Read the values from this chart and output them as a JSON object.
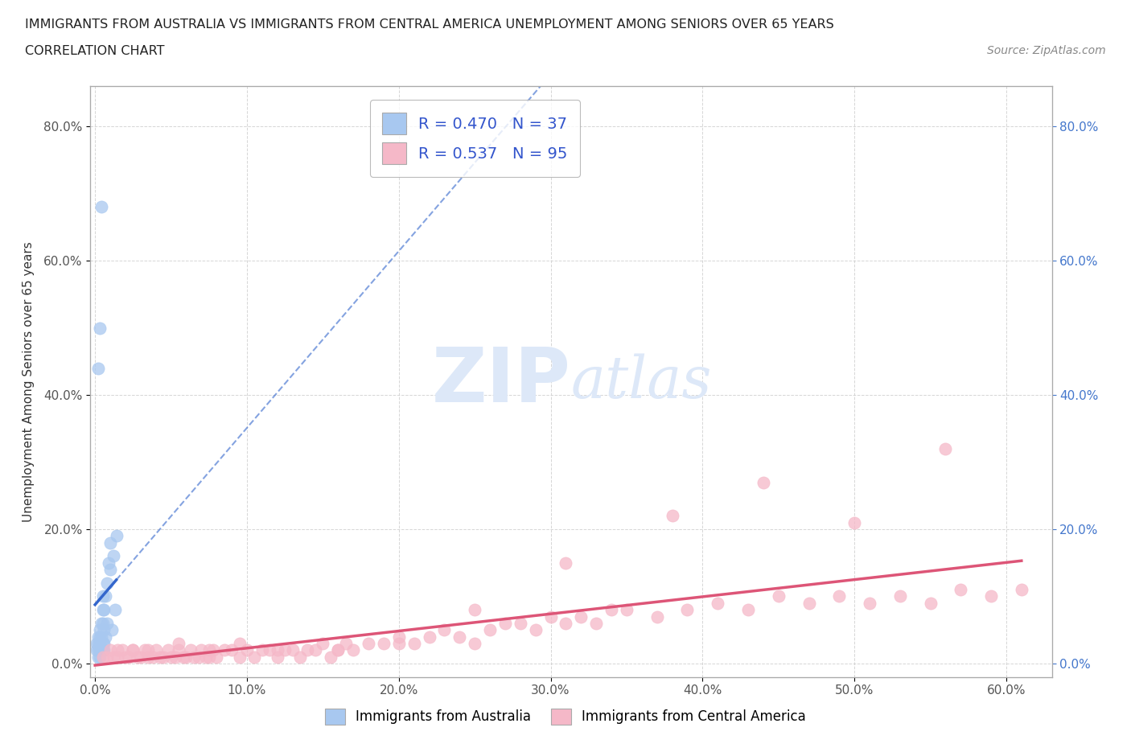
{
  "title_line1": "IMMIGRANTS FROM AUSTRALIA VS IMMIGRANTS FROM CENTRAL AMERICA UNEMPLOYMENT AMONG SENIORS OVER 65 YEARS",
  "title_line2": "CORRELATION CHART",
  "source_text": "Source: ZipAtlas.com",
  "xlabel_ticks": [
    "0.0%",
    "10.0%",
    "20.0%",
    "30.0%",
    "40.0%",
    "50.0%",
    "60.0%"
  ],
  "ylabel_ticks_left": [
    "0.0%",
    "20.0%",
    "40.0%",
    "60.0%",
    "80.0%"
  ],
  "ylabel_ticks_right": [
    "0.0%",
    "20.0%",
    "40.0%",
    "60.0%",
    "80.0%"
  ],
  "ylabel_label": "Unemployment Among Seniors over 65 years",
  "xmin": -0.003,
  "xmax": 0.63,
  "ymin": -0.02,
  "ymax": 0.86,
  "R_australia": 0.47,
  "N_australia": 37,
  "R_central_america": 0.537,
  "N_central_america": 95,
  "color_australia": "#a8c8f0",
  "color_central_america": "#f5b8c8",
  "trendline_color_australia": "#3366cc",
  "trendline_color_central_america": "#dd5577",
  "legend_text_color": "#3355cc",
  "watermark_color": "#dde8f8",
  "left_tick_color": "#555555",
  "right_tick_color": "#4477cc",
  "australia_x": [
    0.001,
    0.001,
    0.002,
    0.002,
    0.002,
    0.002,
    0.003,
    0.003,
    0.003,
    0.003,
    0.003,
    0.004,
    0.004,
    0.004,
    0.005,
    0.005,
    0.005,
    0.005,
    0.006,
    0.006,
    0.006,
    0.007,
    0.007,
    0.008,
    0.008,
    0.009,
    0.01,
    0.01,
    0.011,
    0.012,
    0.013,
    0.014,
    0.002,
    0.003,
    0.004,
    0.005,
    0.006
  ],
  "australia_y": [
    0.02,
    0.03,
    0.01,
    0.02,
    0.03,
    0.04,
    0.01,
    0.02,
    0.03,
    0.04,
    0.05,
    0.02,
    0.04,
    0.06,
    0.02,
    0.03,
    0.06,
    0.08,
    0.02,
    0.05,
    0.08,
    0.04,
    0.1,
    0.06,
    0.12,
    0.15,
    0.14,
    0.18,
    0.05,
    0.16,
    0.08,
    0.19,
    0.44,
    0.5,
    0.68,
    0.1,
    0.03
  ],
  "central_america_x": [
    0.005,
    0.008,
    0.01,
    0.012,
    0.015,
    0.018,
    0.02,
    0.022,
    0.025,
    0.028,
    0.03,
    0.033,
    0.035,
    0.038,
    0.04,
    0.043,
    0.045,
    0.048,
    0.05,
    0.053,
    0.055,
    0.058,
    0.06,
    0.063,
    0.065,
    0.068,
    0.07,
    0.073,
    0.075,
    0.078,
    0.08,
    0.085,
    0.09,
    0.095,
    0.1,
    0.105,
    0.11,
    0.115,
    0.12,
    0.125,
    0.13,
    0.135,
    0.14,
    0.145,
    0.15,
    0.155,
    0.16,
    0.165,
    0.17,
    0.18,
    0.19,
    0.2,
    0.21,
    0.22,
    0.23,
    0.24,
    0.25,
    0.26,
    0.27,
    0.28,
    0.29,
    0.3,
    0.31,
    0.32,
    0.33,
    0.34,
    0.35,
    0.37,
    0.39,
    0.41,
    0.43,
    0.45,
    0.47,
    0.49,
    0.51,
    0.53,
    0.55,
    0.57,
    0.59,
    0.61,
    0.015,
    0.025,
    0.035,
    0.055,
    0.075,
    0.095,
    0.12,
    0.16,
    0.2,
    0.25,
    0.31,
    0.38,
    0.44,
    0.5,
    0.56
  ],
  "central_america_y": [
    0.01,
    0.01,
    0.02,
    0.01,
    0.01,
    0.02,
    0.01,
    0.01,
    0.02,
    0.01,
    0.01,
    0.02,
    0.01,
    0.01,
    0.02,
    0.01,
    0.01,
    0.02,
    0.01,
    0.01,
    0.02,
    0.01,
    0.01,
    0.02,
    0.01,
    0.01,
    0.02,
    0.01,
    0.01,
    0.02,
    0.01,
    0.02,
    0.02,
    0.01,
    0.02,
    0.01,
    0.02,
    0.02,
    0.01,
    0.02,
    0.02,
    0.01,
    0.02,
    0.02,
    0.03,
    0.01,
    0.02,
    0.03,
    0.02,
    0.03,
    0.03,
    0.04,
    0.03,
    0.04,
    0.05,
    0.04,
    0.08,
    0.05,
    0.06,
    0.06,
    0.05,
    0.07,
    0.06,
    0.07,
    0.06,
    0.08,
    0.08,
    0.07,
    0.08,
    0.09,
    0.08,
    0.1,
    0.09,
    0.1,
    0.09,
    0.1,
    0.09,
    0.11,
    0.1,
    0.11,
    0.02,
    0.02,
    0.02,
    0.03,
    0.02,
    0.03,
    0.02,
    0.02,
    0.03,
    0.03,
    0.15,
    0.22,
    0.27,
    0.21,
    0.32
  ]
}
